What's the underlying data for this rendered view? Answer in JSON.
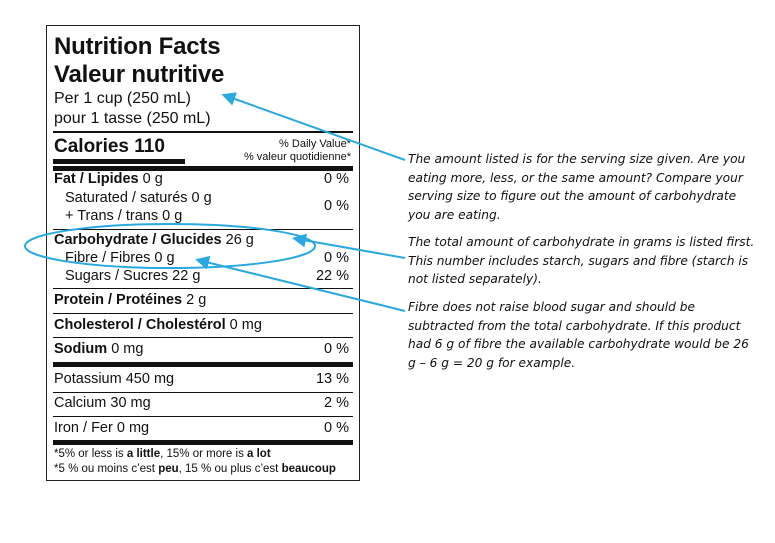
{
  "label": {
    "title_en": "Nutrition Facts",
    "title_fr": "Valeur nutritive",
    "serving_en": "Per 1 cup (250 mL)",
    "serving_fr": "pour 1 tasse (250 mL)",
    "calories_label": "Calories 110",
    "dv_header_en": "% Daily Value*",
    "dv_header_fr": "% valeur quotidienne*",
    "rows": [
      {
        "name": "Fat / Lipides",
        "amount": "0 g",
        "dv": "0 %"
      },
      {
        "name": "Saturated / saturés 0 g",
        "amount": "",
        "dv": "0 %"
      },
      {
        "name": "+ Trans / trans 0 g",
        "amount": "",
        "dv": ""
      },
      {
        "name": "Carbohydrate / Glucides",
        "amount": "26 g",
        "dv": ""
      },
      {
        "name": "Fibre / Fibres 0 g",
        "amount": "",
        "dv": "0 %"
      },
      {
        "name": "Sugars / Sucres 22 g",
        "amount": "",
        "dv": "22 %"
      },
      {
        "name": "Protein / Protéines",
        "amount": "2 g",
        "dv": ""
      },
      {
        "name": "Cholesterol / Cholestérol",
        "amount": "0 mg",
        "dv": ""
      },
      {
        "name": "Sodium",
        "amount": "0 mg",
        "dv": "0 %"
      },
      {
        "name": "Potassium 450 mg",
        "amount": "",
        "dv": "13 %"
      },
      {
        "name": "Calcium 30 mg",
        "amount": "",
        "dv": "2 %"
      },
      {
        "name": "Iron / Fer 0 mg",
        "amount": "",
        "dv": "0 %"
      }
    ],
    "foot_en_pre": "*5% or less is ",
    "foot_en_little": "a little",
    "foot_en_mid": ", 15% or more is ",
    "foot_en_lot": "a lot",
    "foot_fr_pre": "*5 % ou moins c’est ",
    "foot_fr_peu": "peu",
    "foot_fr_mid": ", 15 % ou plus c’est ",
    "foot_fr_beaucoup": "beaucoup"
  },
  "notes": {
    "serving": "The amount listed is for the serving size given. Are you eating more, less, or the same amount? Compare your serving size to figure out the amount of carbohydrate you are eating.",
    "carbohydrate": "The total amount of carbohydrate in grams is listed first. This number includes starch, sugars and fibre (starch is not listed separately).",
    "fibre": "Fibre does not raise blood sugar and should be subtracted from the total carbohydrate. If this product had 6 g of fibre the available carbohydrate would be 26 g – 6 g = 20 g for example."
  },
  "colors": {
    "accent": "#29a9e0",
    "ink": "#111111"
  }
}
